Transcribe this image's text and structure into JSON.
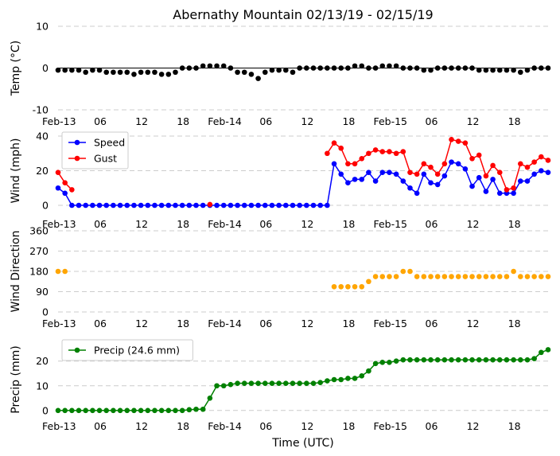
{
  "chart_data": {
    "title": "Abernathy Mountain 02/13/19 - 02/15/19",
    "xlabel": "Time (UTC)",
    "x_hours": [
      0,
      1,
      2,
      3,
      4,
      5,
      6,
      7,
      8,
      9,
      10,
      11,
      12,
      13,
      14,
      15,
      16,
      17,
      18,
      19,
      20,
      21,
      22,
      23,
      24,
      25,
      26,
      27,
      28,
      29,
      30,
      31,
      32,
      33,
      34,
      35,
      36,
      37,
      38,
      39,
      40,
      41,
      42,
      43,
      44,
      45,
      46,
      47,
      48,
      49,
      50,
      51,
      52,
      53,
      54,
      55,
      56,
      57,
      58,
      59,
      60,
      61,
      62,
      63,
      64,
      65,
      66,
      67,
      68,
      69,
      70,
      71
    ],
    "x_range": [
      0,
      71
    ],
    "x_tick_labels": [
      {
        "hour": 0,
        "label": "Feb-13"
      },
      {
        "hour": 6,
        "label": "06"
      },
      {
        "hour": 12,
        "label": "12"
      },
      {
        "hour": 18,
        "label": "18"
      },
      {
        "hour": 24,
        "label": "Feb-14"
      },
      {
        "hour": 30,
        "label": "06"
      },
      {
        "hour": 36,
        "label": "12"
      },
      {
        "hour": 42,
        "label": "18"
      },
      {
        "hour": 48,
        "label": "Feb-15"
      },
      {
        "hour": 54,
        "label": "06"
      },
      {
        "hour": 60,
        "label": "12"
      },
      {
        "hour": 66,
        "label": "18"
      }
    ],
    "panels": [
      {
        "type": "line",
        "ylabel": "Temp (°C)",
        "ylim": [
          -10,
          10
        ],
        "yticks": [
          -10,
          0,
          10
        ],
        "grid": true,
        "zero_line": true,
        "legend": null,
        "series": [
          {
            "name": "Temp",
            "color": "#000000",
            "linestyle": "none",
            "values": [
              -0.5,
              -0.5,
              -0.5,
              -0.5,
              -1,
              -0.5,
              -0.5,
              -1,
              -1,
              -1,
              -1,
              -1.5,
              -1,
              -1,
              -1,
              -1.5,
              -1.5,
              -1,
              0,
              0,
              0,
              0.5,
              0.5,
              0.5,
              0.5,
              0,
              -1,
              -1,
              -1.5,
              -2.5,
              -1,
              -0.5,
              -0.5,
              -0.5,
              -1,
              0,
              0,
              0,
              0,
              0,
              0,
              0,
              0,
              0.5,
              0.5,
              0,
              0,
              0.5,
              0.5,
              0.5,
              0,
              0,
              0,
              -0.5,
              -0.5,
              0,
              0,
              0,
              0,
              0,
              0,
              -0.5,
              -0.5,
              -0.5,
              -0.5,
              -0.5,
              -0.5,
              -1,
              -0.5,
              0,
              0,
              0
            ]
          }
        ]
      },
      {
        "type": "line",
        "ylabel": "Wind (mph)",
        "ylim": [
          0,
          40
        ],
        "yticks": [
          0,
          20,
          40
        ],
        "grid": true,
        "zero_line": false,
        "legend": "top-left",
        "series": [
          {
            "name": "Speed",
            "color": "#0000ff",
            "linestyle": "solid",
            "values": [
              10,
              7,
              0,
              0,
              0,
              0,
              0,
              0,
              0,
              0,
              0,
              0,
              0,
              0,
              0,
              0,
              0,
              0,
              0,
              0,
              0,
              0,
              0,
              0,
              0,
              0,
              0,
              0,
              0,
              0,
              0,
              0,
              0,
              0,
              0,
              0,
              0,
              0,
              0,
              0,
              24,
              18,
              13,
              15,
              15,
              19,
              14,
              19,
              19,
              18,
              14,
              10,
              7,
              18,
              13,
              12,
              17,
              25,
              24,
              21,
              11,
              16,
              8,
              15,
              7,
              7,
              7,
              14,
              14,
              18,
              20,
              19
            ]
          },
          {
            "name": "Gust",
            "color": "#ff0000",
            "linestyle": "solid",
            "values": [
              19,
              13,
              9,
              null,
              null,
              null,
              null,
              null,
              null,
              null,
              null,
              null,
              null,
              null,
              null,
              null,
              null,
              null,
              null,
              null,
              null,
              null,
              0.5,
              null,
              null,
              null,
              null,
              null,
              null,
              null,
              null,
              null,
              null,
              null,
              null,
              null,
              null,
              null,
              null,
              30,
              36,
              33,
              24,
              24,
              27,
              30,
              32,
              31,
              31,
              30,
              31,
              19,
              18,
              24,
              22,
              18,
              24,
              38,
              37,
              36,
              27,
              29,
              17,
              23,
              19,
              9,
              10,
              24,
              22,
              25,
              28,
              26
            ]
          }
        ]
      },
      {
        "type": "scatter",
        "ylabel": "Wind Direction",
        "ylim": [
          0,
          360
        ],
        "yticks": [
          0,
          90,
          180,
          270,
          360
        ],
        "grid": true,
        "zero_line": false,
        "legend": null,
        "series": [
          {
            "name": "Direction",
            "color": "#ffa500",
            "linestyle": "none",
            "values": [
              180,
              180,
              null,
              null,
              null,
              null,
              null,
              null,
              null,
              null,
              null,
              null,
              null,
              null,
              null,
              null,
              null,
              null,
              null,
              null,
              null,
              null,
              null,
              null,
              null,
              null,
              null,
              null,
              null,
              null,
              null,
              null,
              null,
              null,
              null,
              null,
              null,
              null,
              null,
              null,
              112,
              112,
              112,
              112,
              112,
              135,
              157,
              157,
              157,
              157,
              180,
              180,
              157,
              157,
              157,
              157,
              157,
              157,
              157,
              157,
              157,
              157,
              157,
              157,
              157,
              157,
              180,
              157,
              157,
              157,
              157,
              157
            ]
          }
        ]
      },
      {
        "type": "line",
        "ylabel": "Precip (mm)",
        "ylim": [
          -2,
          27
        ],
        "yticks": [
          0,
          10,
          20
        ],
        "grid": true,
        "zero_line": false,
        "legend": "top-left",
        "series": [
          {
            "name": "Precip (24.6 mm)",
            "color": "#008000",
            "linestyle": "solid",
            "values": [
              0,
              0,
              0,
              0,
              0,
              0,
              0,
              0,
              0,
              0,
              0,
              0,
              0,
              0,
              0,
              0,
              0,
              0,
              0,
              0.3,
              0.5,
              0.5,
              5,
              10,
              10,
              10.5,
              11,
              11,
              11,
              11,
              11,
              11,
              11,
              11,
              11,
              11,
              11,
              11,
              11.3,
              12,
              12.5,
              12.5,
              13,
              13,
              14,
              16,
              19,
              19.5,
              19.5,
              20,
              20.5,
              20.5,
              20.5,
              20.5,
              20.5,
              20.5,
              20.5,
              20.5,
              20.5,
              20.5,
              20.5,
              20.5,
              20.5,
              20.5,
              20.5,
              20.5,
              20.5,
              20.5,
              20.5,
              21,
              23.5,
              24.6
            ]
          }
        ]
      }
    ]
  }
}
